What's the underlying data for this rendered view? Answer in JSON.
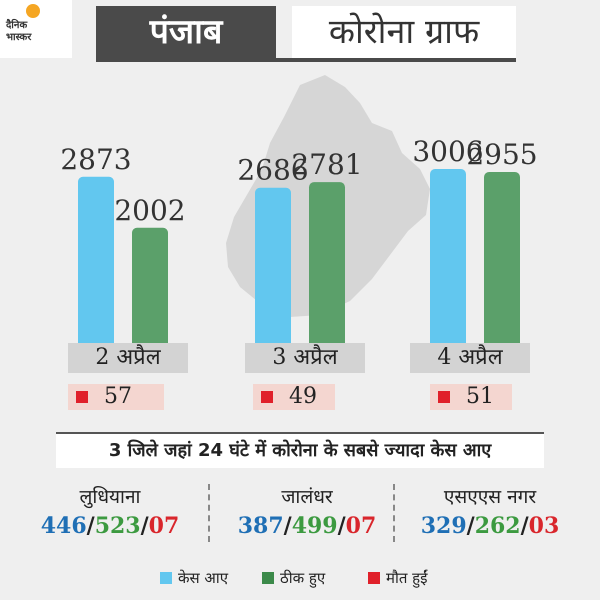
{
  "header": {
    "logo_line1": "दैनिक",
    "logo_line2": "भास्कर",
    "state": "पंजाब",
    "title": "कोरोना ग्राफ"
  },
  "colors": {
    "cases": "#62c7ef",
    "recovered": "#5ba06a",
    "deaths": "#e0202a",
    "background": "#efefef",
    "map": "#d6d6d6"
  },
  "chart_data": {
    "type": "bar",
    "categories": [
      "2 अप्रैल",
      "3 अप्रैल",
      "4 अप्रैल"
    ],
    "series": [
      {
        "name": "केस आए",
        "values": [
          2873,
          2686,
          3006
        ]
      },
      {
        "name": "ठीक हुए",
        "values": [
          2002,
          2781,
          2955
        ]
      }
    ],
    "deaths": [
      "57",
      "49",
      "51"
    ],
    "ylim": [
      0,
      3500
    ],
    "legend": "bottom",
    "grid": false
  },
  "districts_section": {
    "title": "3 जिले जहां 24 घंटे में कोरोना के सबसे ज्यादा केस आए",
    "items": [
      {
        "name": "लुधियाना",
        "cases": "446",
        "recovered": "523",
        "deaths": "07"
      },
      {
        "name": "जालंधर",
        "cases": "387",
        "recovered": "499",
        "deaths": "07"
      },
      {
        "name": "एसएएस नगर",
        "cases": "329",
        "recovered": "262",
        "deaths": "03"
      }
    ]
  },
  "legend": {
    "cases": "केस आए",
    "recovered": "ठीक हुए",
    "deaths": "मौत हुईं"
  }
}
